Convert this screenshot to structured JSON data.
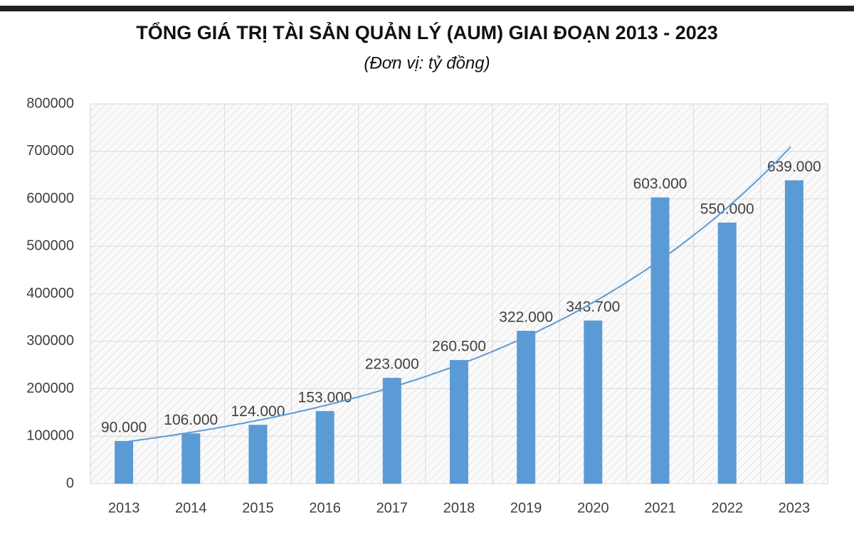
{
  "chart_data": {
    "type": "bar",
    "title": "TỔNG GIÁ TRỊ TÀI SẢN QUẢN LÝ (AUM) GIAI ĐOẠN 2013 - 2023",
    "subtitle": "(Đơn vị: tỷ đồng)",
    "categories": [
      "2013",
      "2014",
      "2015",
      "2016",
      "2017",
      "2018",
      "2019",
      "2020",
      "2021",
      "2022",
      "2023"
    ],
    "values": [
      90000,
      106000,
      124000,
      153000,
      223000,
      260500,
      322000,
      343700,
      603000,
      550000,
      639000
    ],
    "value_labels": [
      "90.000",
      "106.000",
      "124.000",
      "153.000",
      "223.000",
      "260.500",
      "322.000",
      "343.700",
      "603.000",
      "550.000",
      "639.000"
    ],
    "color": "#5b9bd5",
    "trendline": "exponential",
    "trendline_color": "#5b9bd5",
    "ylim": [
      0,
      800000
    ],
    "yticks": [
      0,
      100000,
      200000,
      300000,
      400000,
      500000,
      600000,
      700000,
      800000
    ],
    "grid": true
  }
}
